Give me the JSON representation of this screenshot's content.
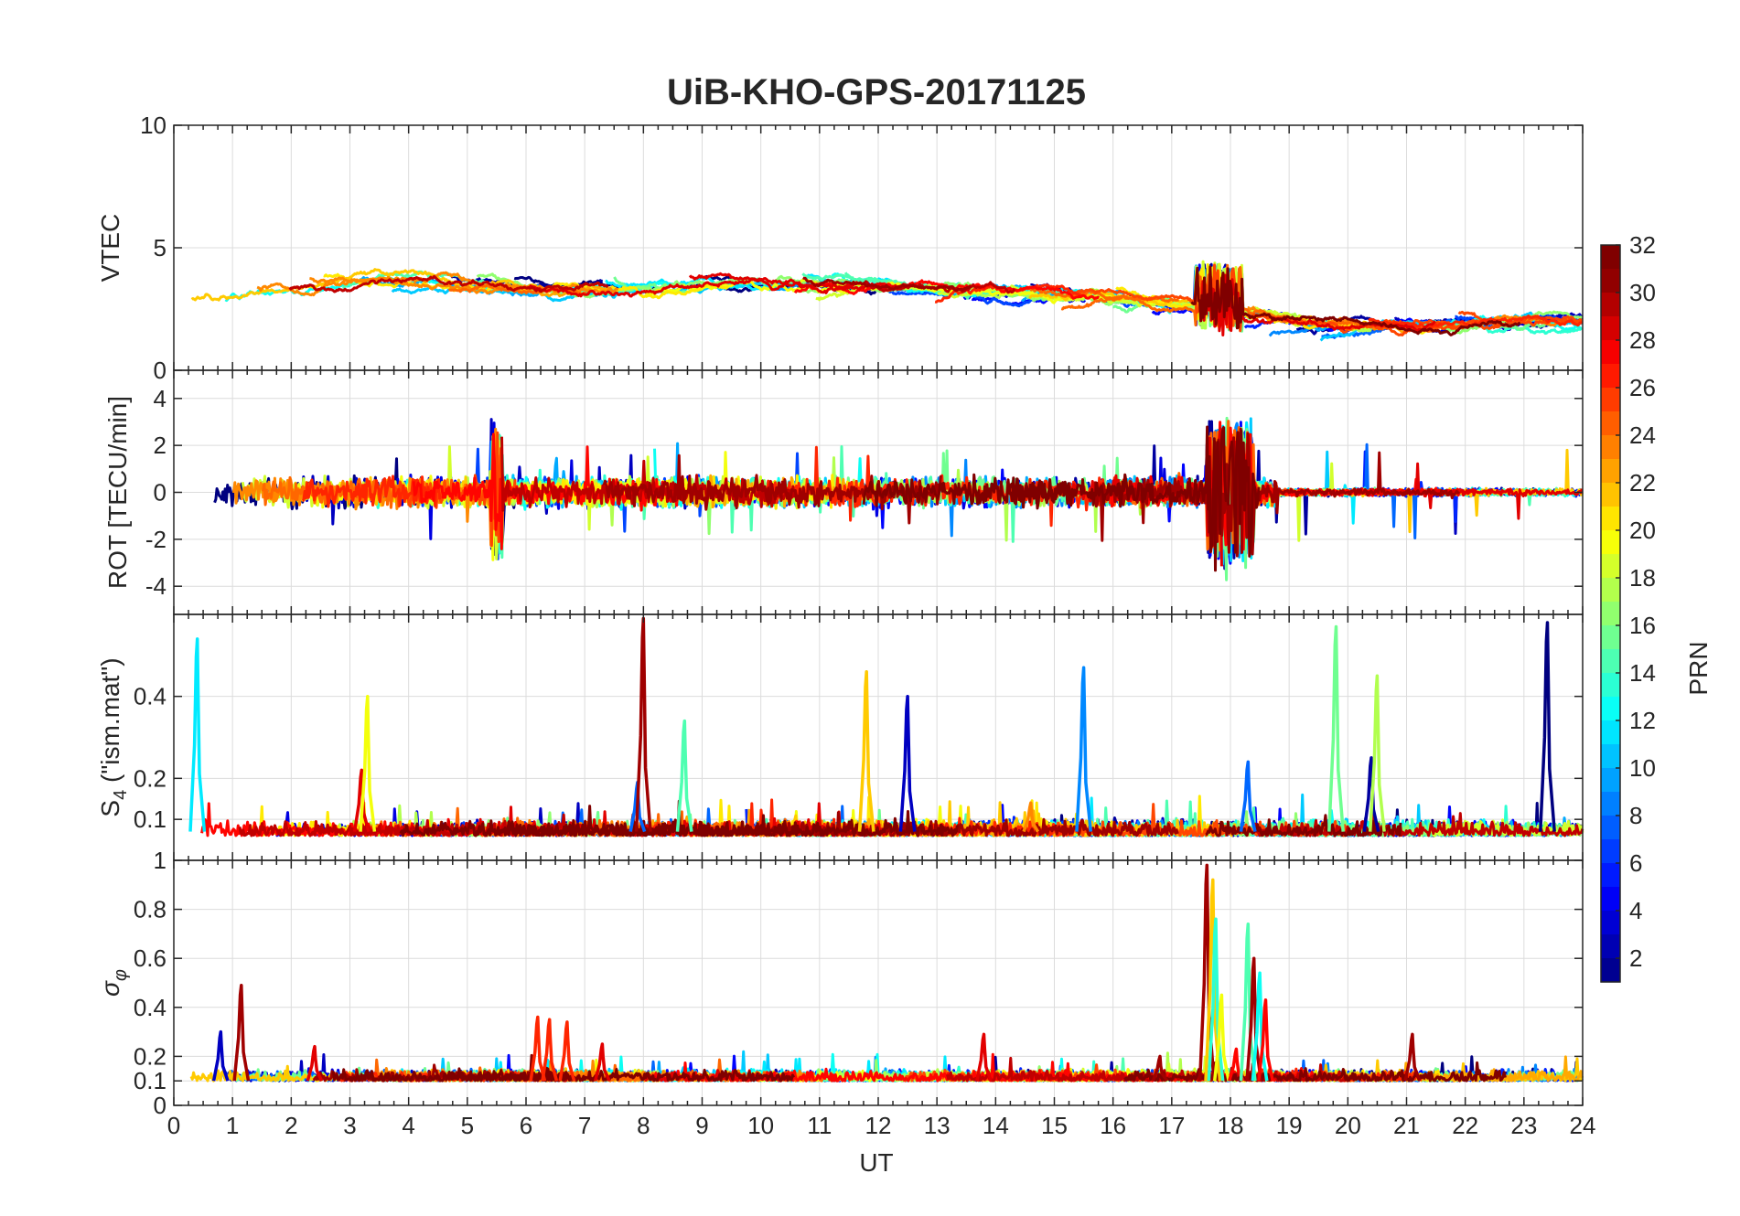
{
  "chart_data": {
    "type": "line",
    "title": "UiB-KHO-GPS-20171125",
    "xlabel": "UT",
    "xlim": [
      0,
      24
    ],
    "xticks": [
      "0",
      "1",
      "2",
      "3",
      "4",
      "5",
      "6",
      "7",
      "8",
      "9",
      "10",
      "11",
      "12",
      "13",
      "14",
      "15",
      "16",
      "17",
      "18",
      "19",
      "20",
      "21",
      "22",
      "23",
      "24"
    ],
    "grid": true,
    "colorbar": {
      "label": "PRN",
      "ticks": [
        "2",
        "4",
        "6",
        "8",
        "10",
        "12",
        "14",
        "16",
        "18",
        "20",
        "22",
        "24",
        "26",
        "28",
        "30",
        "32"
      ],
      "range": [
        1,
        32
      ],
      "colormap": "jet",
      "placement": "right"
    },
    "panels": [
      {
        "id": "vtec",
        "ylabel": "VTEC",
        "ylim": [
          0,
          10
        ],
        "yticks": [
          0,
          5,
          10
        ],
        "ytick_labels": [
          "0",
          "5",
          "10"
        ],
        "series_shape": {
          "base": 3.2,
          "drift": [
            [
              0,
              2.8
            ],
            [
              3,
              3.8
            ],
            [
              6,
              3.2
            ],
            [
              10,
              3.6
            ],
            [
              14,
              3.2
            ],
            [
              17,
              2.6
            ],
            [
              19,
              1.8
            ],
            [
              24,
              2.0
            ]
          ],
          "noise": 0.7,
          "events": [
            {
              "x": 17.8,
              "amp": 2.5,
              "width": 0.8
            }
          ]
        }
      },
      {
        "id": "rot",
        "ylabel": "ROT [TECU/min]",
        "ylim": [
          -5.2,
          5.2
        ],
        "yticks": [
          -4,
          -2,
          0,
          2,
          4
        ],
        "ytick_labels": [
          "-4",
          "-2",
          "0",
          "2",
          "4"
        ],
        "series_shape": {
          "base": 0,
          "noise": 0.45,
          "spikes": 3.5,
          "events": [
            {
              "x": 18.0,
              "amp": 3.5,
              "width": 0.8
            },
            {
              "x": 5.5,
              "amp": 3.5,
              "width": 0.2
            }
          ]
        }
      },
      {
        "id": "s4",
        "ylabel": "S4 (\"ism.mat\")",
        "ylabel_main": "S",
        "ylabel_sub": "4",
        "ylabel_rest": " (\"ism.mat\")",
        "ylim": [
          0,
          0.6
        ],
        "yticks": [
          0.1,
          0.2,
          0.4
        ],
        "ytick_labels": [
          "0.1",
          "0.2",
          "0.4"
        ],
        "series_shape": {
          "base": 0.06,
          "noise": 0.025
        },
        "peaks": [
          {
            "x": 0.4,
            "y": 0.54,
            "prn": 12
          },
          {
            "x": 3.2,
            "y": 0.22,
            "prn": 29
          },
          {
            "x": 3.3,
            "y": 0.4,
            "prn": 20
          },
          {
            "x": 7.9,
            "y": 0.19,
            "prn": 8
          },
          {
            "x": 8.0,
            "y": 0.59,
            "prn": 31
          },
          {
            "x": 8.7,
            "y": 0.34,
            "prn": 15
          },
          {
            "x": 11.8,
            "y": 0.46,
            "prn": 22
          },
          {
            "x": 12.5,
            "y": 0.4,
            "prn": 3
          },
          {
            "x": 14.6,
            "y": 0.14,
            "prn": 24
          },
          {
            "x": 15.5,
            "y": 0.47,
            "prn": 9
          },
          {
            "x": 18.3,
            "y": 0.24,
            "prn": 8
          },
          {
            "x": 19.8,
            "y": 0.57,
            "prn": 16
          },
          {
            "x": 20.4,
            "y": 0.25,
            "prn": 2
          },
          {
            "x": 20.5,
            "y": 0.45,
            "prn": 18
          },
          {
            "x": 23.4,
            "y": 0.58,
            "prn": 1
          }
        ]
      },
      {
        "id": "sigma",
        "ylabel": "σφ",
        "ylabel_main": "σ",
        "ylabel_sub": "φ",
        "ylim": [
          0,
          1
        ],
        "yticks": [
          0,
          0.1,
          0.2,
          0.4,
          0.6,
          0.8,
          1
        ],
        "ytick_labels": [
          "0",
          "0.1",
          "0.2",
          "0.4",
          "0.6",
          "0.8",
          "1"
        ],
        "series_shape": {
          "base": 0.1,
          "noise": 0.03
        },
        "peaks": [
          {
            "x": 0.8,
            "y": 0.3,
            "prn": 3
          },
          {
            "x": 1.15,
            "y": 0.49,
            "prn": 31
          },
          {
            "x": 2.4,
            "y": 0.24,
            "prn": 29
          },
          {
            "x": 6.2,
            "y": 0.36,
            "prn": 27
          },
          {
            "x": 6.4,
            "y": 0.35,
            "prn": 27
          },
          {
            "x": 6.7,
            "y": 0.34,
            "prn": 27
          },
          {
            "x": 7.3,
            "y": 0.25,
            "prn": 29
          },
          {
            "x": 13.8,
            "y": 0.29,
            "prn": 29
          },
          {
            "x": 16.8,
            "y": 0.2,
            "prn": 31
          },
          {
            "x": 17.6,
            "y": 0.98,
            "prn": 31
          },
          {
            "x": 17.7,
            "y": 0.92,
            "prn": 22
          },
          {
            "x": 17.75,
            "y": 0.76,
            "prn": 14
          },
          {
            "x": 17.85,
            "y": 0.45,
            "prn": 20
          },
          {
            "x": 18.1,
            "y": 0.23,
            "prn": 28
          },
          {
            "x": 18.3,
            "y": 0.74,
            "prn": 15
          },
          {
            "x": 18.4,
            "y": 0.6,
            "prn": 31
          },
          {
            "x": 18.5,
            "y": 0.54,
            "prn": 13
          },
          {
            "x": 18.6,
            "y": 0.43,
            "prn": 28
          },
          {
            "x": 21.1,
            "y": 0.29,
            "prn": 31
          }
        ]
      }
    ],
    "series_count": 32
  }
}
